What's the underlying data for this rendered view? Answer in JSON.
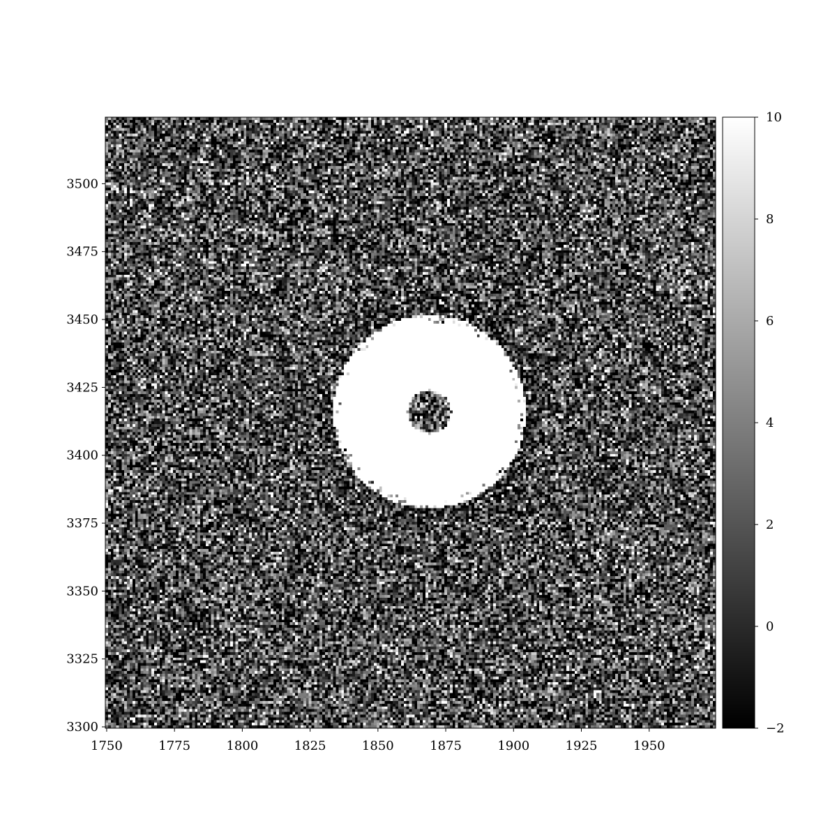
{
  "chart_data": {
    "type": "heatmap",
    "title": "",
    "xlabel": "",
    "ylabel": "",
    "colormap": "gray",
    "xlim": [
      1749.5,
      1974.5
    ],
    "ylim": [
      3299.5,
      3524.5
    ],
    "xticks": [
      1750,
      1775,
      1800,
      1825,
      1850,
      1875,
      1900,
      1925,
      1950
    ],
    "xtick_labels": [
      "1750",
      "1775",
      "1800",
      "1825",
      "1850",
      "1875",
      "1900",
      "1925",
      "1950"
    ],
    "yticks": [
      3300,
      3325,
      3350,
      3375,
      3400,
      3425,
      3450,
      3475,
      3500
    ],
    "ytick_labels": [
      "3300",
      "3325",
      "3350",
      "3375",
      "3400",
      "3425",
      "3450",
      "3475",
      "3500"
    ],
    "colorbar": {
      "range": [
        -2,
        10
      ],
      "ticks": [
        -2,
        0,
        2,
        4,
        6,
        8,
        10
      ],
      "tick_labels": [
        "−2",
        "0",
        "2",
        "4",
        "6",
        "8",
        "10"
      ]
    },
    "features": {
      "background": "noise",
      "ring": {
        "center_x": 1869,
        "center_y": 3416,
        "outer_radius": 34,
        "inner_radius": 8,
        "value": "≥10 (saturated)"
      },
      "core": {
        "center_x": 1869,
        "center_y": 3416,
        "radius": 8
      }
    }
  }
}
